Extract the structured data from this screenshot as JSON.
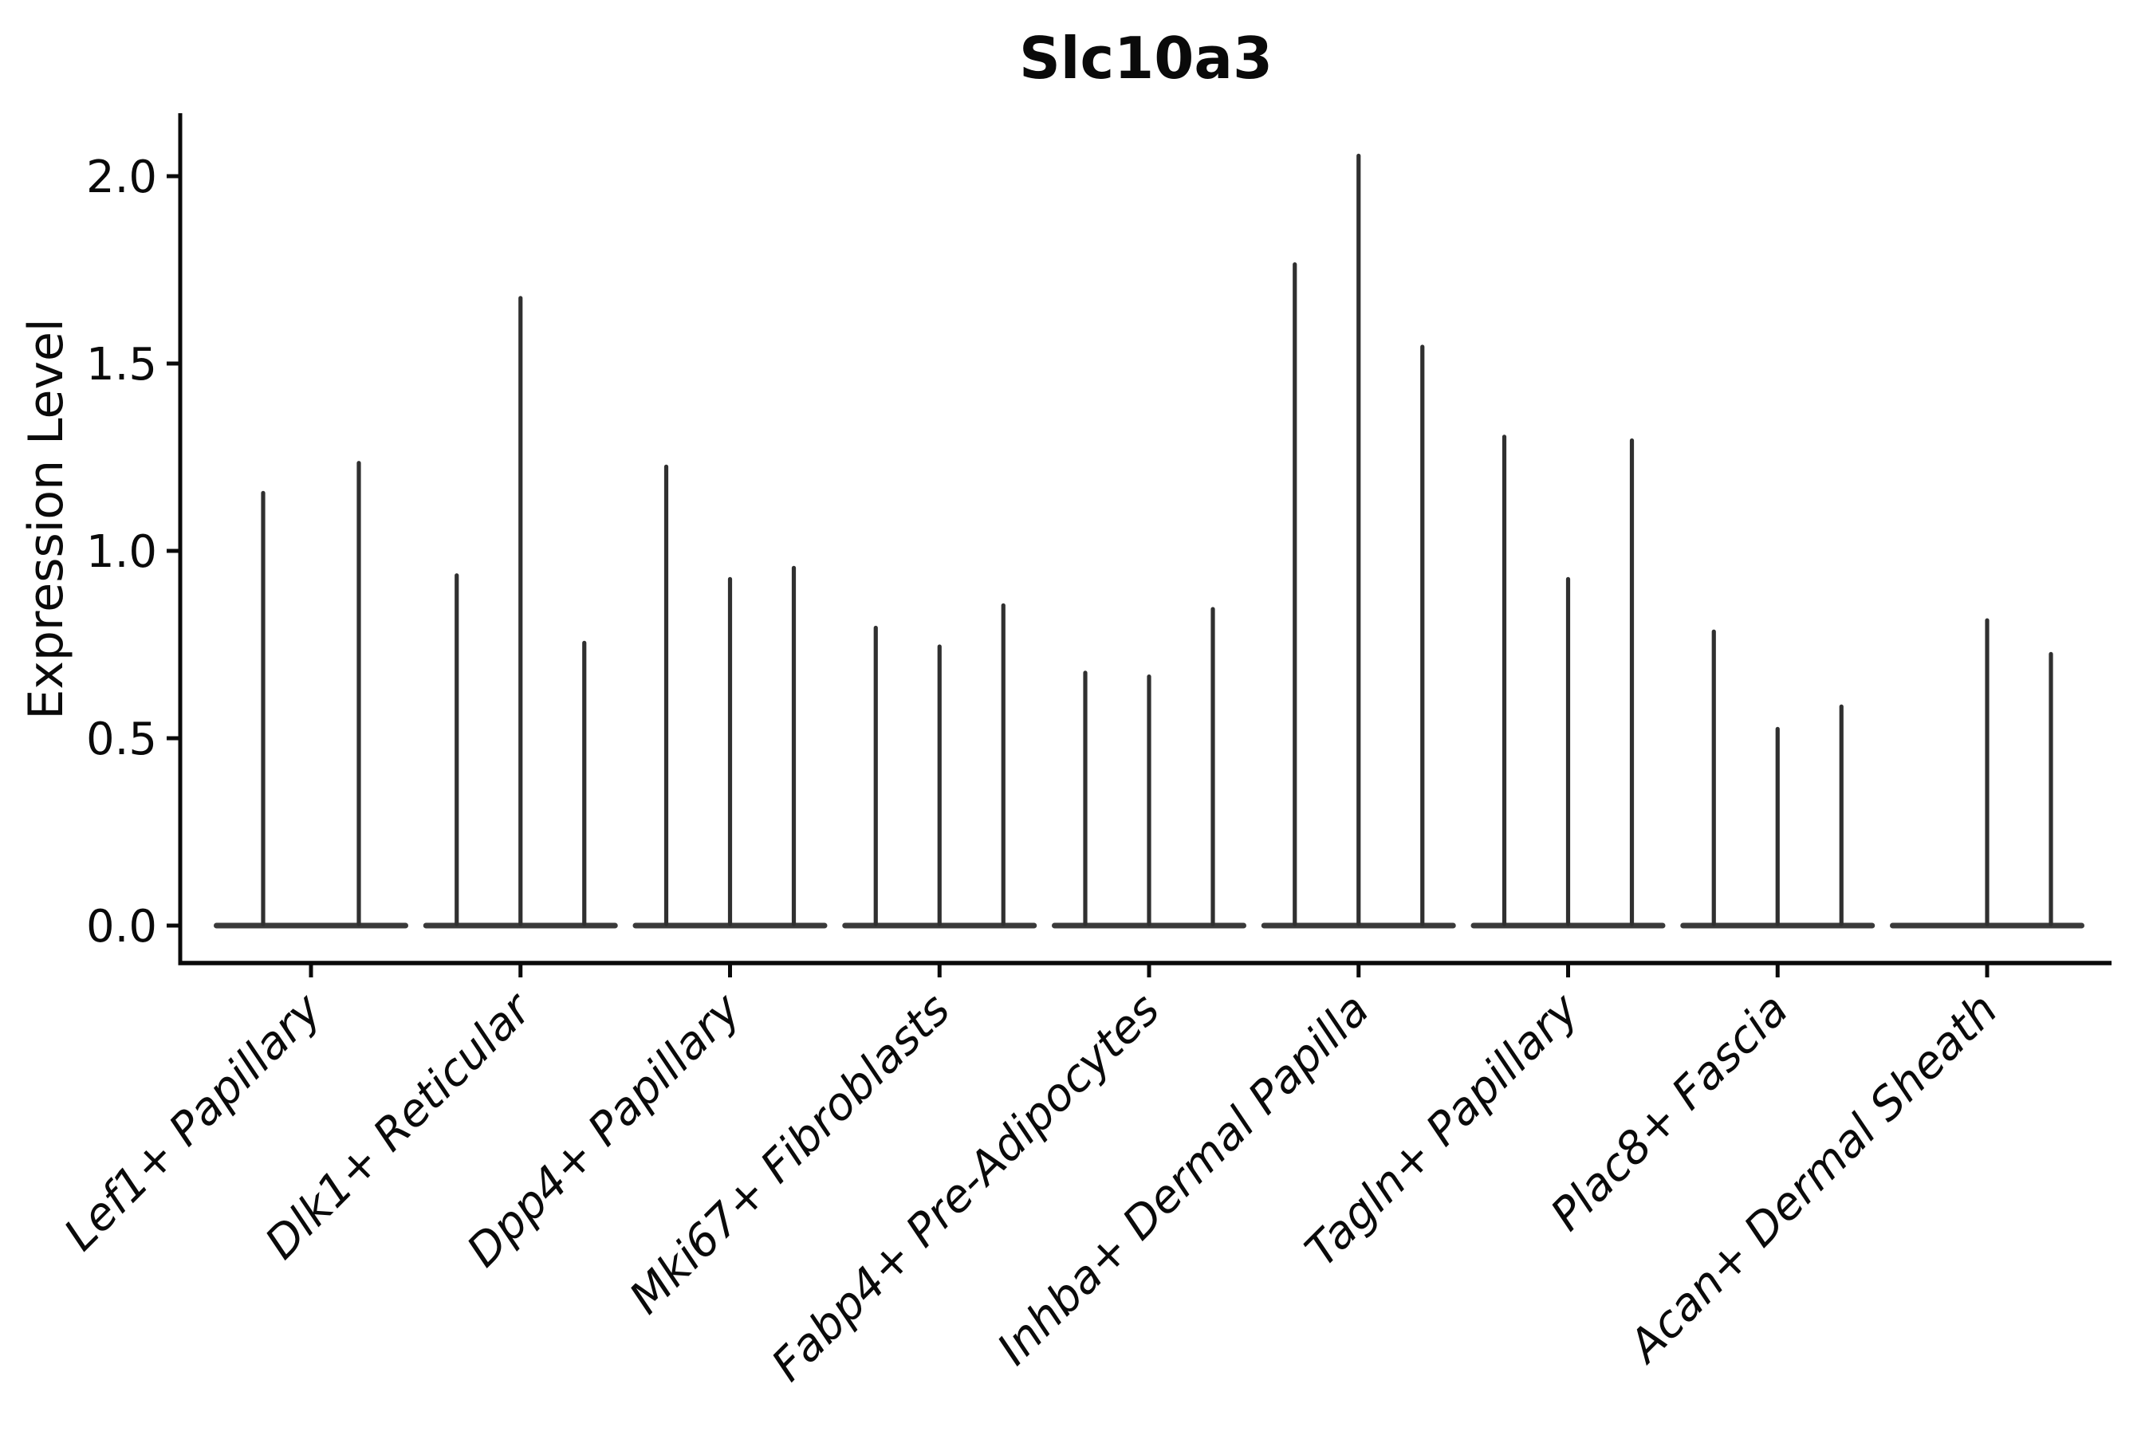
{
  "figure": {
    "title": "Slc10a3",
    "y_axis": {
      "label": "Expression Level",
      "tick_labels": [
        "0.0",
        "0.5",
        "1.0",
        "1.5",
        "2.0"
      ]
    },
    "x_axis": {
      "tick_labels": [
        "Lef1+ Papillary",
        "Dlk1+ Reticular",
        "Dpp4+ Papillary",
        "Mki67+ Fibroblasts",
        "Fabp4+ Pre-Adipocytes",
        "Inhba+ Dermal Papilla",
        "Tagln+ Papillary",
        "Plac8+ Fascia",
        "Acan+ Dermal Sheath"
      ]
    }
  },
  "colors": {
    "background": "#ffffff",
    "ink": "#0a0a0a",
    "violin_spike": "#303030",
    "violin_base": "#3a3a3a"
  },
  "chart_data": {
    "type": "violin",
    "title": "Slc10a3",
    "xlabel": "",
    "ylabel": "Expression Level",
    "ylim": [
      -0.1,
      2.17
    ],
    "yticks": [
      0.0,
      0.5,
      1.0,
      1.5,
      2.0
    ],
    "grid": false,
    "legend": false,
    "shape_note": "Each violin is collapsed flat at 0 (most cells zero) with a thin vertical spike reaching the maximum expression value; a value of 0 means a fully flat violin with no spike",
    "categories": [
      "Lef1+ Papillary",
      "Dlk1+ Reticular",
      "Dpp4+ Papillary",
      "Mki67+ Fibroblasts",
      "Fabp4+ Pre-Adipocytes",
      "Inhba+ Dermal Papilla",
      "Tagln+ Papillary",
      "Plac8+ Fascia",
      "Acan+ Dermal Sheath"
    ],
    "groups": [
      {
        "category": "Lef1+ Papillary",
        "violin_peaks": [
          1.16,
          1.24
        ]
      },
      {
        "category": "Dlk1+ Reticular",
        "violin_peaks": [
          0.94,
          1.68,
          0.76
        ]
      },
      {
        "category": "Dpp4+ Papillary",
        "violin_peaks": [
          1.23,
          0.93,
          0.96
        ]
      },
      {
        "category": "Mki67+ Fibroblasts",
        "violin_peaks": [
          0.8,
          0.75,
          0.86
        ]
      },
      {
        "category": "Fabp4+ Pre-Adipocytes",
        "violin_peaks": [
          0.68,
          0.67,
          0.85
        ]
      },
      {
        "category": "Inhba+ Dermal Papilla",
        "violin_peaks": [
          1.77,
          2.06,
          1.55
        ]
      },
      {
        "category": "Tagln+ Papillary",
        "violin_peaks": [
          1.31,
          0.93,
          1.3
        ]
      },
      {
        "category": "Plac8+ Fascia",
        "violin_peaks": [
          0.79,
          0.53,
          0.59
        ]
      },
      {
        "category": "Acan+ Dermal Sheath",
        "violin_peaks": [
          0.0,
          0.82,
          0.73
        ]
      }
    ]
  }
}
